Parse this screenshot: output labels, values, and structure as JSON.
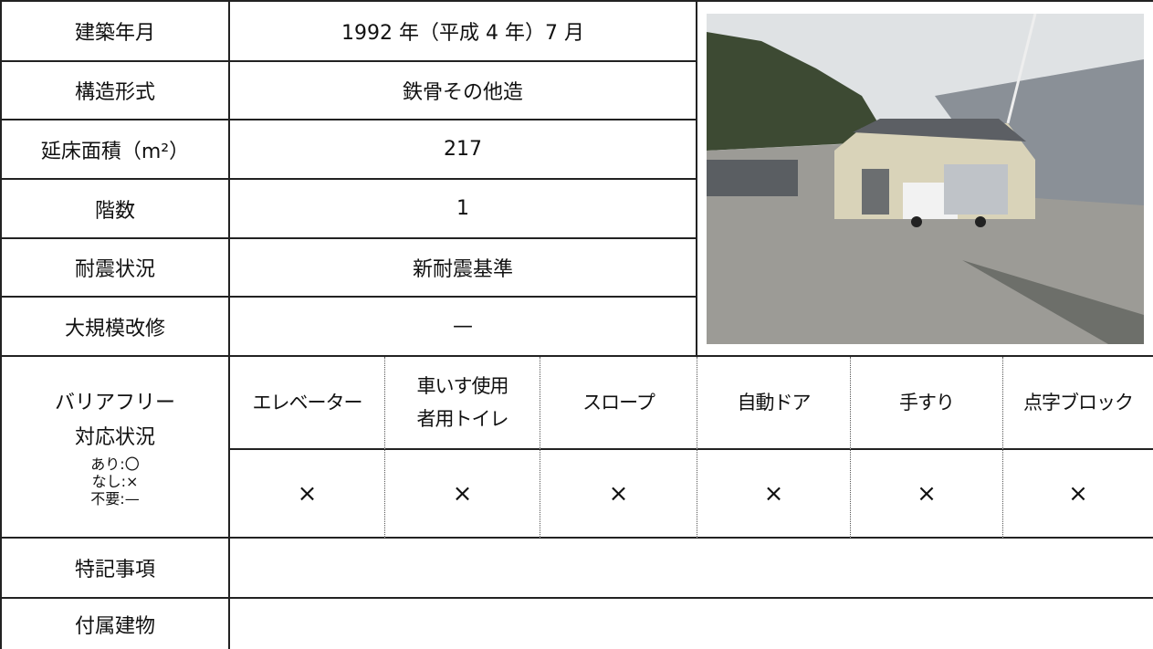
{
  "rows": [
    {
      "label": "建築年月",
      "value": "1992 年（平成 4 年）7 月"
    },
    {
      "label": "構造形式",
      "value": "鉄骨その他造"
    },
    {
      "label": "延床面積（m²）",
      "value": "217"
    },
    {
      "label": "階数",
      "value": "1"
    },
    {
      "label": "耐震状況",
      "value": "新耐震基準"
    },
    {
      "label": "大規模改修",
      "value": "—"
    }
  ],
  "barrier_free": {
    "label": [
      "バリアフリー",
      "対応状況"
    ],
    "legend": [
      "あり:〇",
      "なし:×",
      "不要:—"
    ],
    "items": [
      "エレベーター",
      "車いす使用者用トイレ",
      "スロープ",
      "自動ドア",
      "手すり",
      "点字ブロック"
    ],
    "status": [
      "×",
      "×",
      "×",
      "×",
      "×",
      "×"
    ]
  },
  "notes": {
    "label": "特記事項"
  },
  "annex": {
    "label": "付属建物"
  }
}
